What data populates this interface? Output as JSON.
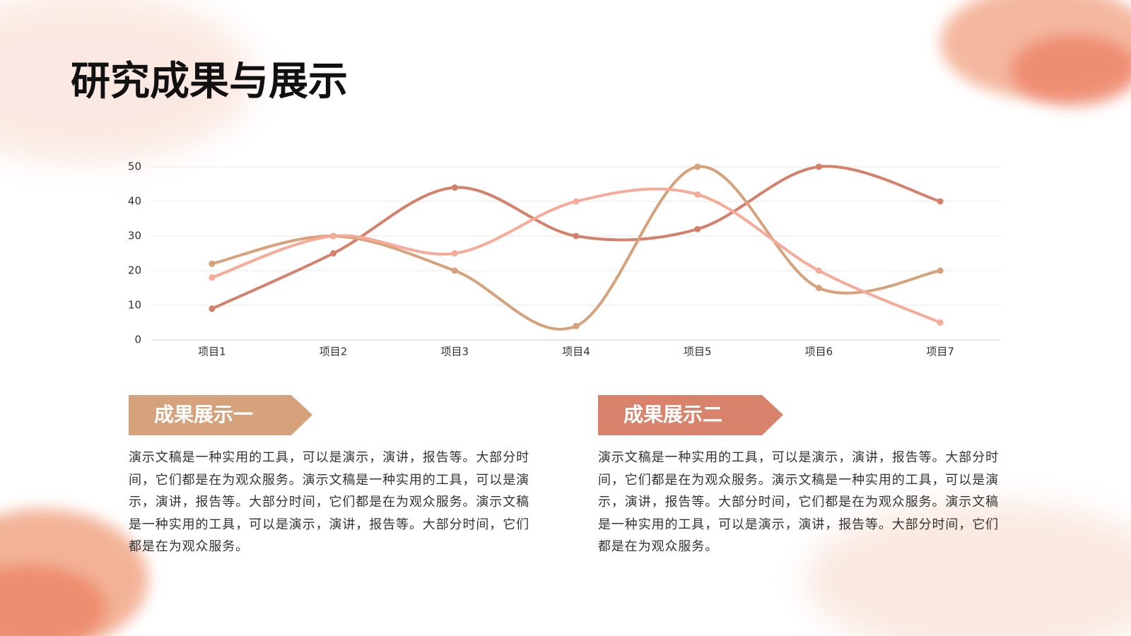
{
  "title": "研究成果与展示",
  "chart_data": {
    "type": "line",
    "categories": [
      "项目1",
      "项目2",
      "项目3",
      "项目4",
      "项目5",
      "项目6",
      "项目7"
    ],
    "series": [
      {
        "color": "#d4806a",
        "values": [
          9,
          25,
          44,
          30,
          32,
          50,
          40
        ]
      },
      {
        "color": "#d6a27c",
        "values": [
          22,
          30,
          20,
          4,
          50,
          15,
          20
        ]
      },
      {
        "color": "#f7aa98",
        "values": [
          18,
          30,
          25,
          40,
          42,
          20,
          5
        ]
      }
    ],
    "ylim": [
      0,
      50
    ],
    "yticks": [
      0,
      10,
      20,
      30,
      40,
      50
    ],
    "grid": true,
    "smooth": true
  },
  "sections": [
    {
      "heading": "成果展示一",
      "color": "#d6a27c",
      "text": "演示文稿是一种实用的工具，可以是演示，演讲，报告等。大部分时间，它们都是在为观众服务。演示文稿是一种实用的工具，可以是演示，演讲，报告等。大部分时间，它们都是在为观众服务。演示文稿是一种实用的工具，可以是演示，演讲，报告等。大部分时间，它们都是在为观众服务。"
    },
    {
      "heading": "成果展示二",
      "color": "#d9826c",
      "text": "演示文稿是一种实用的工具，可以是演示，演讲，报告等。大部分时间，它们都是在为观众服务。演示文稿是一种实用的工具，可以是演示，演讲，报告等。大部分时间，它们都是在为观众服务。演示文稿是一种实用的工具，可以是演示，演讲，报告等。大部分时间，它们都是在为观众服务。"
    }
  ]
}
